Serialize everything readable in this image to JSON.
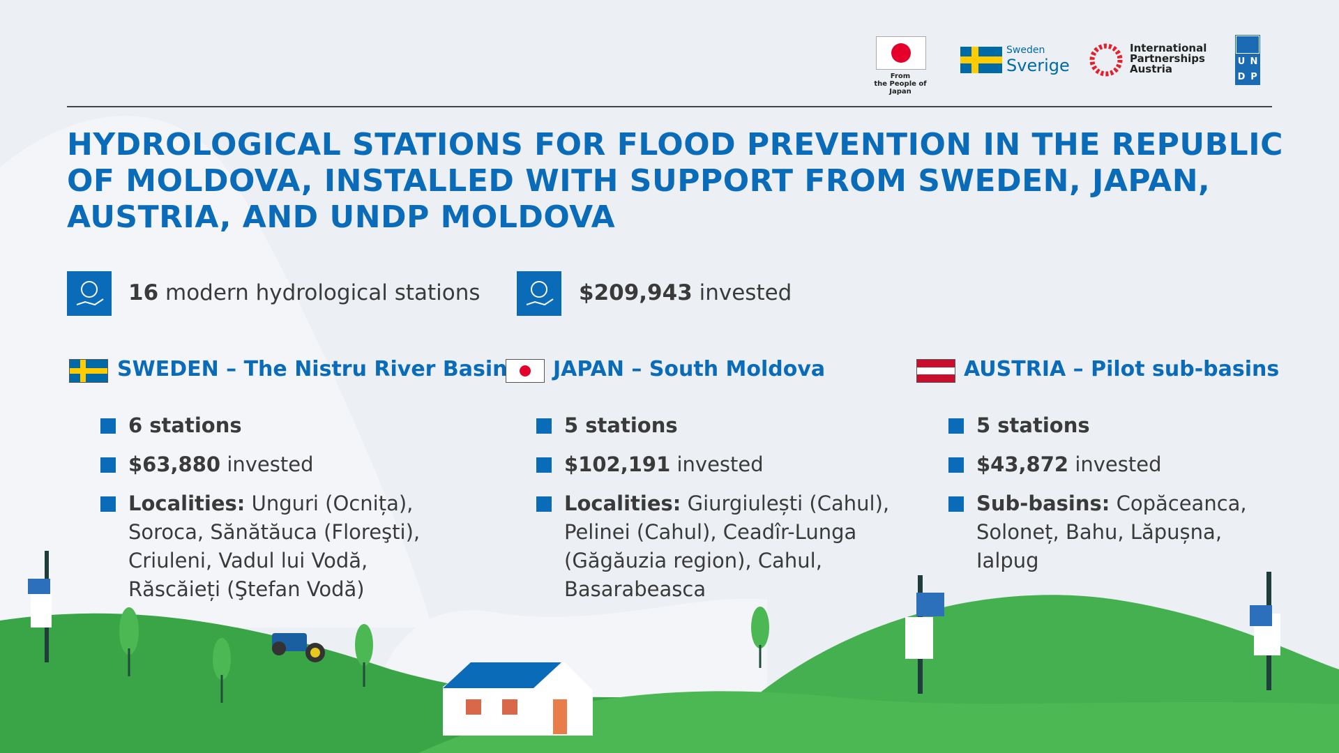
{
  "logos": {
    "japan": [
      "From",
      "the People of Japan"
    ],
    "sweden": [
      "Sweden",
      "Sverige"
    ],
    "austria": [
      "International",
      "Partnerships",
      "Austria"
    ],
    "undp": [
      "U",
      "N",
      "D",
      "P"
    ]
  },
  "title_lines": [
    "HYDROLOGICAL STATIONS FOR FLOOD PREVENTION IN THE REPUBLIC",
    "OF MOLDOVA, INSTALLED WITH SUPPORT FROM SWEDEN, JAPAN,",
    "AUSTRIA, AND UNDP MOLDOVA"
  ],
  "stats": [
    {
      "bold": "16",
      "text": "modern hydrological stations"
    },
    {
      "bold": "$209,943",
      "text": "invested"
    }
  ],
  "columns": [
    {
      "flag": "sweden",
      "heading": "SWEDEN – The Nistru River Basin",
      "items": [
        {
          "bold": "6 stations"
        },
        {
          "bold": "$63,880",
          "text": "invested"
        },
        {
          "bold": "Localities:",
          "text": "Unguri (Ocnița), Soroca, Sănătăuca (Floreşti), Criuleni, Vadul lui Vodă, Răscăieți (Ştefan Vodă)"
        }
      ]
    },
    {
      "flag": "japan",
      "heading": "JAPAN – South Moldova",
      "items": [
        {
          "bold": "5 stations"
        },
        {
          "bold": "$102,191",
          "text": "invested"
        },
        {
          "bold": "Localities:",
          "text": "Giurgiulești (Cahul), Pelinei (Cahul), Ceadîr-Lunga (Găgăuzia region), Cahul, Basarabeasca"
        }
      ]
    },
    {
      "flag": "austria",
      "heading": "AUSTRIA – Pilot sub-basins",
      "items": [
        {
          "bold": "5 stations"
        },
        {
          "bold": "$43,872",
          "text": "invested"
        },
        {
          "bold": "Sub-basins:",
          "text": "Copăceanca, Soloneț, Bahu, Lăpușna, Ialpug"
        }
      ]
    }
  ]
}
